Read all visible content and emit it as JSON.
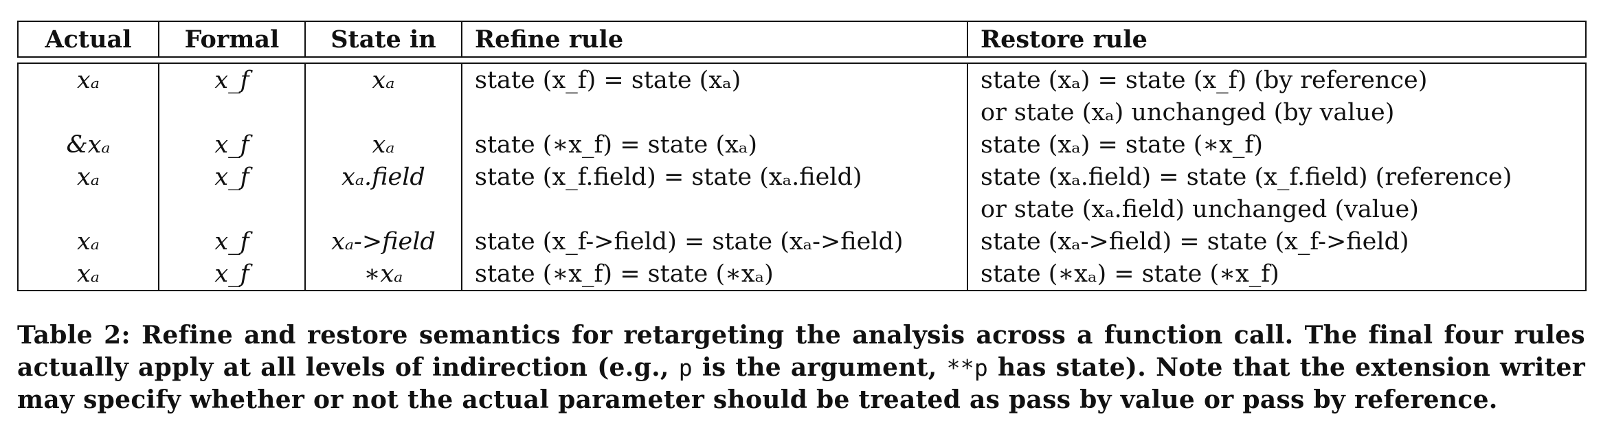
{
  "table": {
    "headers": [
      "Actual",
      "Formal",
      "State in",
      "Refine rule",
      "Restore rule"
    ],
    "rows": [
      [
        "xₐ",
        "x_f",
        "xₐ",
        "state (x_f) = state (xₐ)",
        "state (xₐ) = state (x_f) (by reference)"
      ],
      [
        "",
        "",
        "",
        "",
        "or state (xₐ) unchanged (by value)"
      ],
      [
        "&xₐ",
        "x_f",
        "xₐ",
        "state (∗x_f) = state (xₐ)",
        "state (xₐ) = state (∗x_f)"
      ],
      [
        "xₐ",
        "x_f",
        "xₐ.field",
        "state (x_f.field) = state (xₐ.field)",
        "state (xₐ.field) = state (x_f.field) (reference)"
      ],
      [
        "",
        "",
        "",
        "",
        "or state (xₐ.field) unchanged (value)"
      ],
      [
        "xₐ",
        "x_f",
        "xₐ->field",
        "state (x_f->field) = state (xₐ->field)",
        "state (xₐ->field) = state (x_f->field)"
      ],
      [
        "xₐ",
        "x_f",
        "∗xₐ",
        "state (∗x_f) = state (∗xₐ)",
        "state (∗xₐ) = state (∗x_f)"
      ]
    ]
  },
  "caption": {
    "part1": "Table 2: Refine and restore semantics for retargeting the analysis across a function call. The final four rules actually apply at all levels of indirection (e.g., ",
    "code1": "p",
    "part2": " is the argument, ",
    "code2": "**p",
    "part3": " has state). Note that the extension writer may specify whether or not the actual parameter should be treated as pass by value or pass by reference."
  }
}
